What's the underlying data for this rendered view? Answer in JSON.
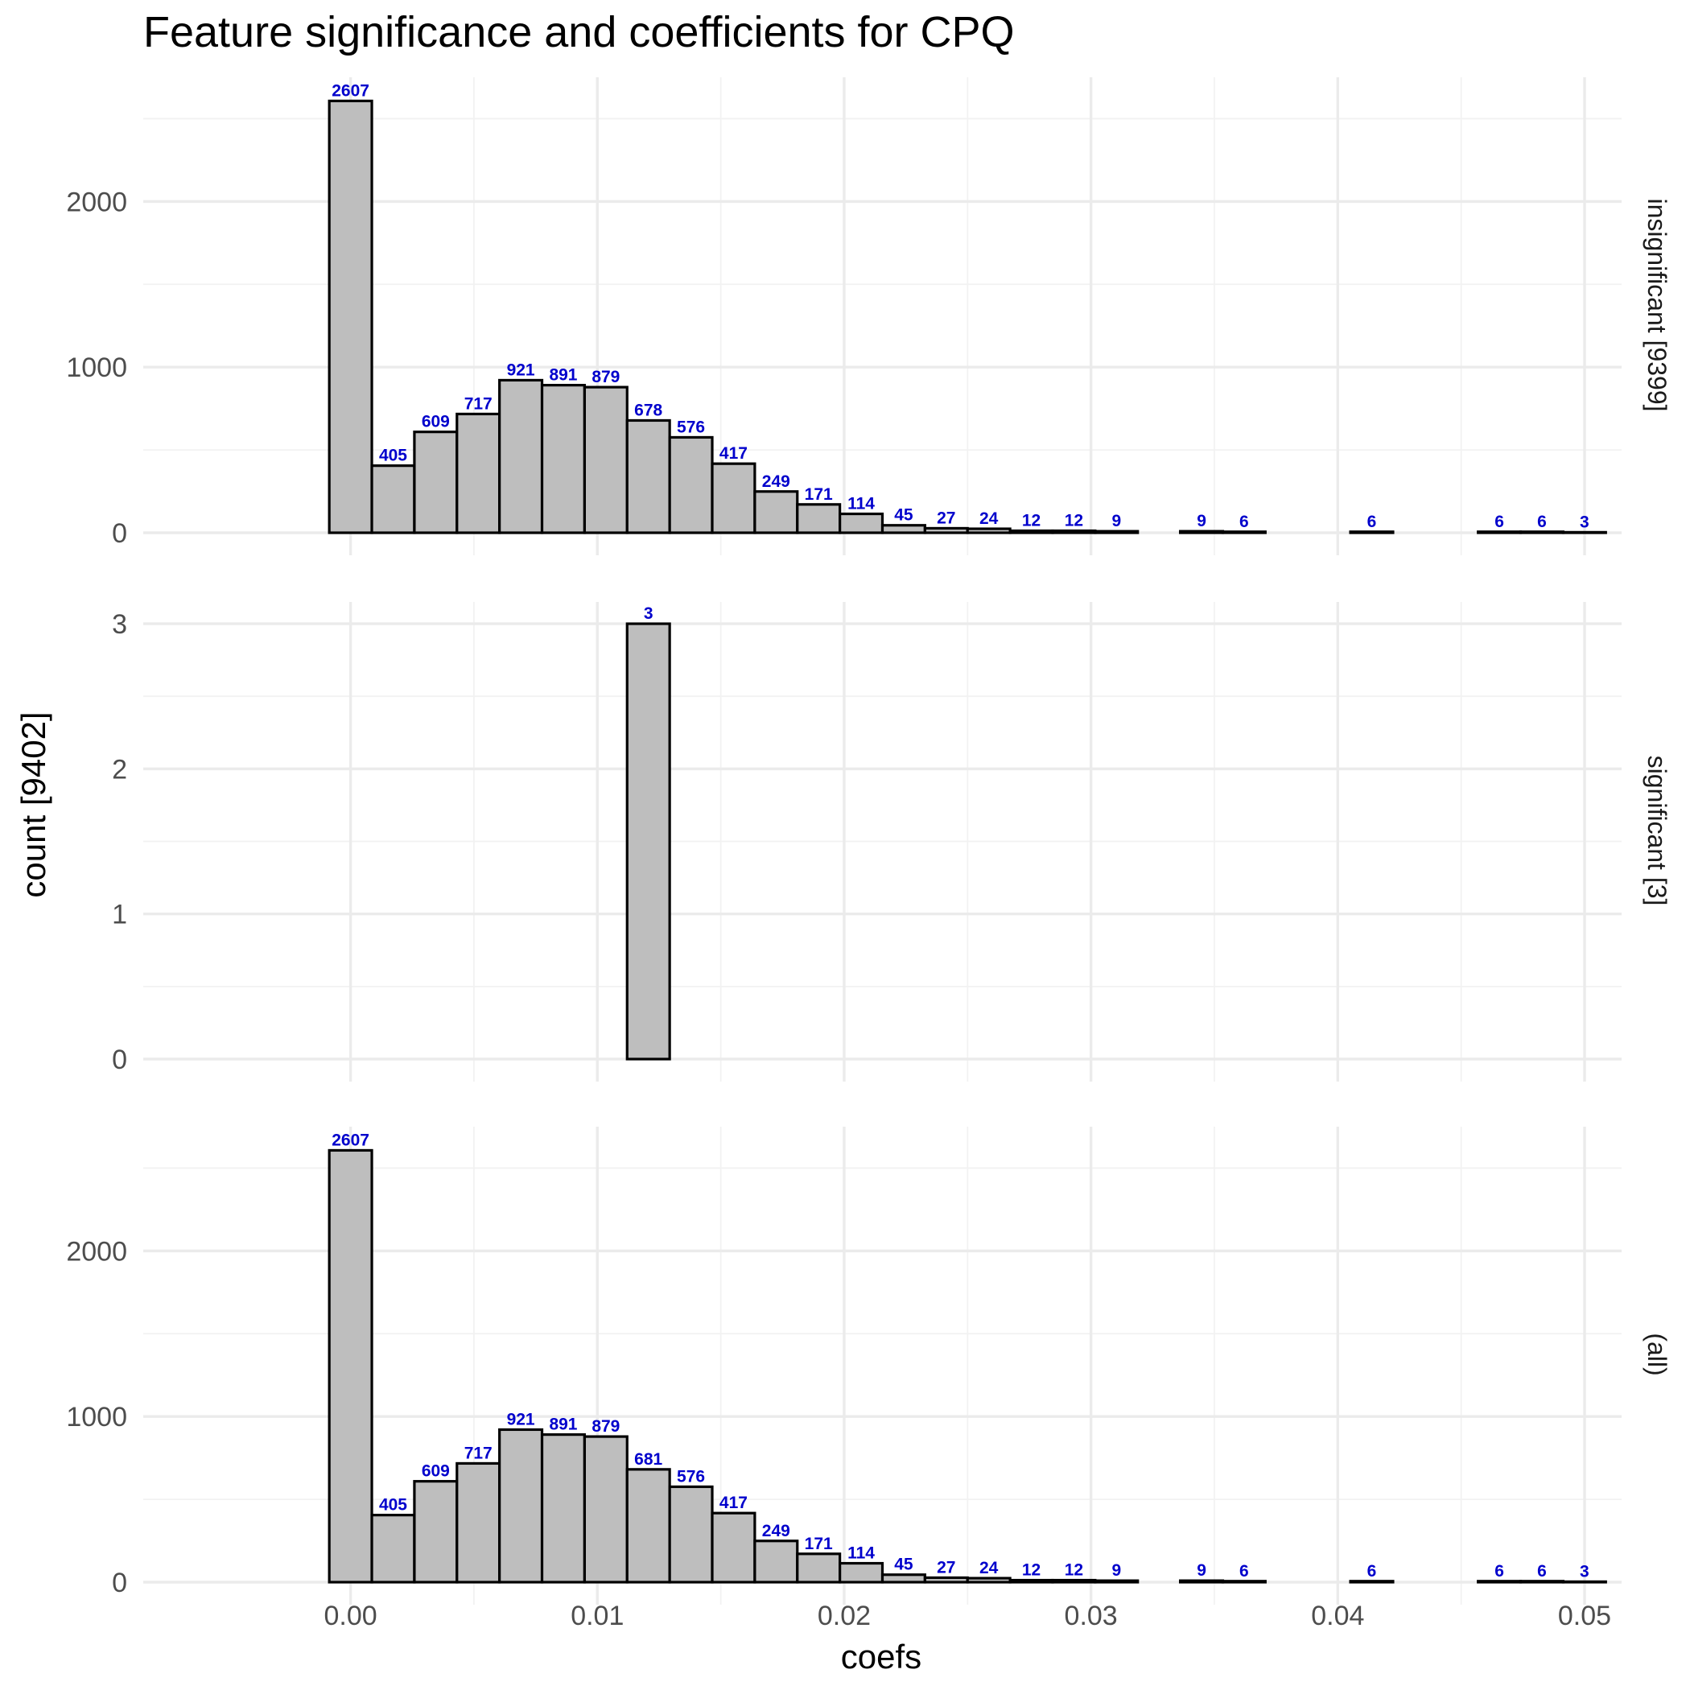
{
  "chart_data": {
    "type": "bar",
    "title": "Feature significance and coefficients for CPQ",
    "xlabel": "coefs",
    "ylabel": "count [9402]",
    "xlim": [
      -0.0084,
      0.0515
    ],
    "x_ticks": [
      0.0,
      0.01,
      0.02,
      0.03,
      0.04,
      0.05
    ],
    "x_tick_labels": [
      "0.00",
      "0.01",
      "0.02",
      "0.03",
      "0.04",
      "0.05"
    ],
    "bin_width": 0.001724,
    "bin_start": -0.000862,
    "bar_fill": "#bebebe",
    "bar_stroke": "#000000",
    "label_color": "#0000cc",
    "grid": true,
    "panels": [
      {
        "strip": "insignificant [9399]",
        "ylim": [
          0,
          2750
        ],
        "y_ticks": [
          0,
          1000,
          2000
        ],
        "y_tick_labels": [
          "0",
          "1000",
          "2000"
        ],
        "counts": [
          2607,
          405,
          609,
          717,
          921,
          891,
          879,
          678,
          576,
          417,
          249,
          171,
          114,
          45,
          27,
          24,
          12,
          12,
          9,
          0,
          9,
          6,
          0,
          0,
          6,
          0,
          0,
          6,
          6,
          3
        ],
        "labels": [
          "2607",
          "405",
          "609",
          "717",
          "921",
          "891",
          "879",
          "678",
          "576",
          "417",
          "249",
          "171",
          "114",
          "45",
          "27",
          "24",
          "12",
          "12",
          "9",
          "",
          "9",
          "6",
          "",
          "",
          "6",
          "",
          "",
          "6",
          "6",
          "3"
        ]
      },
      {
        "strip": "significant [3]",
        "ylim": [
          0,
          3.15
        ],
        "y_ticks": [
          0,
          1,
          2,
          3
        ],
        "y_tick_labels": [
          "0",
          "1",
          "2",
          "3"
        ],
        "counts": [
          0,
          0,
          0,
          0,
          0,
          0,
          0,
          3,
          0,
          0,
          0,
          0,
          0,
          0,
          0,
          0,
          0,
          0,
          0,
          0,
          0,
          0,
          0,
          0,
          0,
          0,
          0,
          0,
          0,
          0
        ],
        "labels": [
          "",
          "",
          "",
          "",
          "",
          "",
          "",
          "3",
          "",
          "",
          "",
          "",
          "",
          "",
          "",
          "",
          "",
          "",
          "",
          "",
          "",
          "",
          "",
          "",
          "",
          "",
          "",
          "",
          "",
          ""
        ]
      },
      {
        "strip": "(all)",
        "ylim": [
          0,
          2750
        ],
        "y_ticks": [
          0,
          1000,
          2000
        ],
        "y_tick_labels": [
          "0",
          "1000",
          "2000"
        ],
        "counts": [
          2607,
          405,
          609,
          717,
          921,
          891,
          879,
          681,
          576,
          417,
          249,
          171,
          114,
          45,
          27,
          24,
          12,
          12,
          9,
          0,
          9,
          6,
          0,
          0,
          6,
          0,
          0,
          6,
          6,
          3
        ],
        "labels": [
          "2607",
          "405",
          "609",
          "717",
          "921",
          "891",
          "879",
          "681",
          "576",
          "417",
          "249",
          "171",
          "114",
          "45",
          "27",
          "24",
          "12",
          "12",
          "9",
          "",
          "9",
          "6",
          "",
          "",
          "6",
          "",
          "",
          "6",
          "6",
          "3"
        ]
      }
    ]
  }
}
